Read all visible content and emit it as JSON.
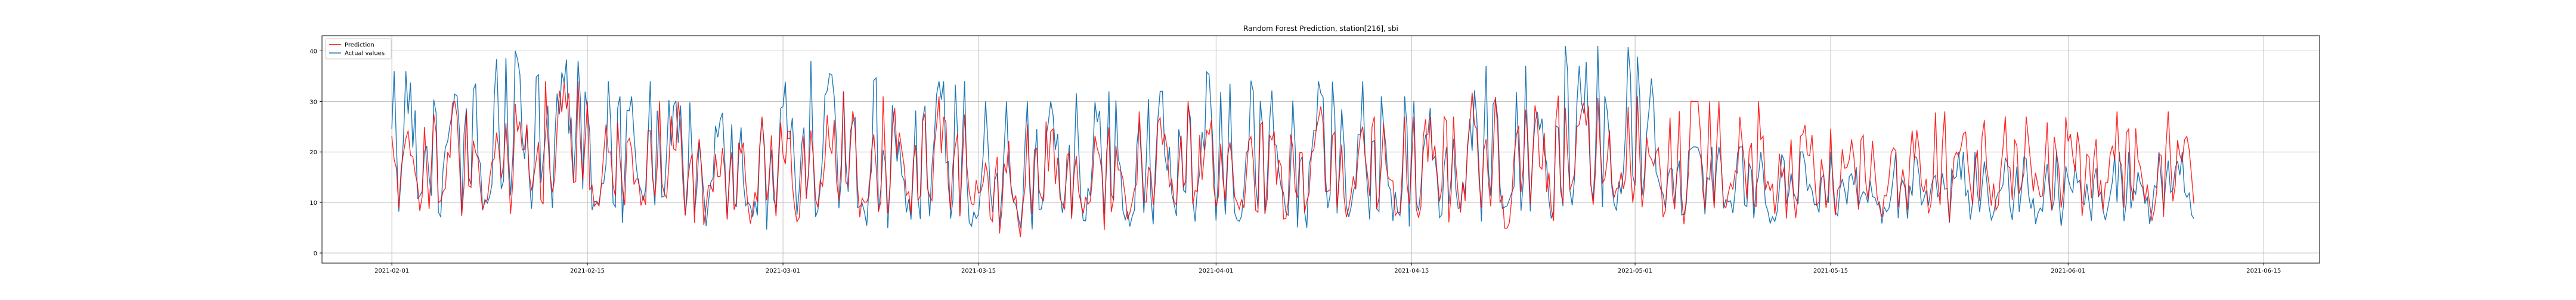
{
  "chart_data": {
    "type": "line",
    "title": "Random Forest Prediction, station[216], sbi",
    "xlabel": "",
    "ylabel": "",
    "x_start": "2021-02-01",
    "x_end": "2021-06-10",
    "xlim": [
      "2021-01-27",
      "2021-06-19"
    ],
    "ylim": [
      -2,
      43
    ],
    "x_ticks": [
      "2021-02-01",
      "2021-02-15",
      "2021-03-01",
      "2021-03-15",
      "2021-04-01",
      "2021-04-15",
      "2021-05-01",
      "2021-05-15",
      "2021-06-01",
      "2021-06-15"
    ],
    "y_ticks": [
      0,
      10,
      20,
      30,
      40
    ],
    "grid": true,
    "legend_position": "top-left",
    "series": [
      {
        "name": "Prediction",
        "color": "#ff0000",
        "weekly_peaks": [
          30,
          34,
          30,
          27,
          32,
          31,
          26,
          28,
          30,
          29,
          27,
          33,
          31,
          30,
          28
        ],
        "weekly_base": [
          11,
          14,
          12,
          10,
          10,
          9,
          8,
          9,
          10,
          9,
          10,
          10,
          12,
          11,
          11
        ]
      },
      {
        "name": "Actual values",
        "color": "#1f77b4",
        "weekly_peaks": [
          36,
          40,
          34,
          30,
          38,
          34,
          30,
          32,
          36,
          34,
          31,
          37,
          41,
          21,
          20
        ],
        "weekly_base": [
          10,
          13,
          11,
          9,
          9,
          8,
          7,
          8,
          9,
          8,
          9,
          9,
          11,
          10,
          10
        ]
      }
    ]
  }
}
